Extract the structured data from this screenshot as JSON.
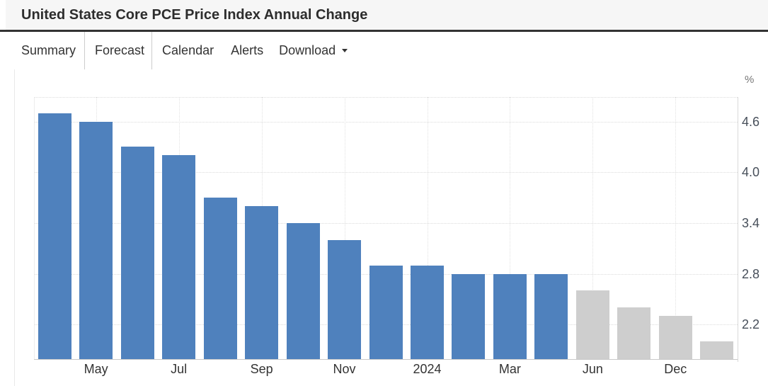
{
  "header": {
    "title": "United States Core PCE Price Index Annual Change"
  },
  "tabs": [
    {
      "label": "Summary",
      "active": false,
      "caret": false
    },
    {
      "label": "Forecast",
      "active": true,
      "caret": false
    },
    {
      "label": "Calendar",
      "active": false,
      "caret": false
    },
    {
      "label": "Alerts",
      "active": false,
      "caret": false
    },
    {
      "label": "Download",
      "active": false,
      "caret": true
    }
  ],
  "chart_data": {
    "type": "bar",
    "title": "United States Core PCE Price Index Annual Change",
    "xlabel": "",
    "ylabel": "",
    "unit_label": "%",
    "ylim": [
      1.79,
      4.89
    ],
    "yticks": [
      4.6,
      4.0,
      3.4,
      2.8,
      2.2
    ],
    "grid": true,
    "legend": "none",
    "colors": {
      "actual": "#4f81bd",
      "forecast": "#cecece"
    },
    "bars": [
      {
        "label": "",
        "value": 4.7,
        "kind": "actual"
      },
      {
        "label": "May",
        "value": 4.6,
        "kind": "actual"
      },
      {
        "label": "",
        "value": 4.3,
        "kind": "actual"
      },
      {
        "label": "Jul",
        "value": 4.2,
        "kind": "actual"
      },
      {
        "label": "",
        "value": 3.7,
        "kind": "actual"
      },
      {
        "label": "Sep",
        "value": 3.6,
        "kind": "actual"
      },
      {
        "label": "",
        "value": 3.4,
        "kind": "actual"
      },
      {
        "label": "Nov",
        "value": 3.2,
        "kind": "actual"
      },
      {
        "label": "",
        "value": 2.9,
        "kind": "actual"
      },
      {
        "label": "2024",
        "value": 2.9,
        "kind": "actual"
      },
      {
        "label": "",
        "value": 2.8,
        "kind": "actual"
      },
      {
        "label": "Mar",
        "value": 2.8,
        "kind": "actual"
      },
      {
        "label": "",
        "value": 2.8,
        "kind": "actual"
      },
      {
        "label": "Jun",
        "value": 2.6,
        "kind": "forecast"
      },
      {
        "label": "",
        "value": 2.4,
        "kind": "forecast"
      },
      {
        "label": "Dec",
        "value": 2.3,
        "kind": "forecast"
      },
      {
        "label": "",
        "value": 2.0,
        "kind": "forecast"
      }
    ]
  }
}
